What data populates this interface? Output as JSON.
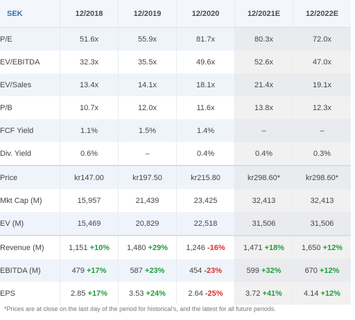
{
  "header": {
    "currency": "SEK",
    "periods": [
      "12/2018",
      "12/2019",
      "12/2020",
      "12/2021E",
      "12/2022E"
    ]
  },
  "rows": {
    "pe": {
      "label": "P/E",
      "values": [
        "51.6x",
        "55.9x",
        "81.7x",
        "80.3x",
        "72.0x"
      ]
    },
    "ev_ebitda": {
      "label": "EV/EBITDA",
      "values": [
        "32.3x",
        "35.5x",
        "49.6x",
        "52.6x",
        "47.0x"
      ]
    },
    "ev_sales": {
      "label": "EV/Sales",
      "values": [
        "13.4x",
        "14.1x",
        "18.1x",
        "21.4x",
        "19.1x"
      ]
    },
    "pb": {
      "label": "P/B",
      "values": [
        "10.7x",
        "12.0x",
        "11.6x",
        "13.8x",
        "12.3x"
      ]
    },
    "fcf_yield": {
      "label": "FCF Yield",
      "values": [
        "1.1%",
        "1.5%",
        "1.4%",
        "–",
        "–"
      ]
    },
    "div_yield": {
      "label": "Div. Yield",
      "values": [
        "0.6%",
        "–",
        "0.4%",
        "0.4%",
        "0.3%"
      ]
    },
    "price": {
      "label": "Price",
      "values": [
        "kr147.00",
        "kr197.50",
        "kr215.80",
        "kr298.60*",
        "kr298.60*"
      ]
    },
    "mkt_cap": {
      "label": "Mkt Cap (M)",
      "values": [
        "15,957",
        "21,439",
        "23,425",
        "32,413",
        "32,413"
      ]
    },
    "ev": {
      "label": "EV (M)",
      "values": [
        "15,469",
        "20,829",
        "22,518",
        "31,506",
        "31,506"
      ]
    },
    "revenue": {
      "label": "Revenue (M)",
      "values": [
        "1,151",
        "1,480",
        "1,246",
        "1,471",
        "1,650"
      ],
      "changes": [
        "+10%",
        "+29%",
        "-16%",
        "+18%",
        "+12%"
      ]
    },
    "ebitda": {
      "label": "EBITDA (M)",
      "values": [
        "479",
        "587",
        "454",
        "599",
        "670"
      ],
      "changes": [
        "+17%",
        "+23%",
        "-23%",
        "+32%",
        "+12%"
      ]
    },
    "eps": {
      "label": "EPS",
      "values": [
        "2.85",
        "3.53",
        "2.64",
        "3.72",
        "4.14"
      ],
      "changes": [
        "+17%",
        "+24%",
        "-25%",
        "+41%",
        "+12%"
      ]
    }
  },
  "footnote": "*Prices are at close on the last day of the period for historical's, and the latest for all future periods.",
  "colors": {
    "positive": "#1f9d3a",
    "negative": "#d9302c",
    "header_accent": "#2f6fb5",
    "stripe": "#eff4fb",
    "estimate": "#f1f1f1"
  }
}
